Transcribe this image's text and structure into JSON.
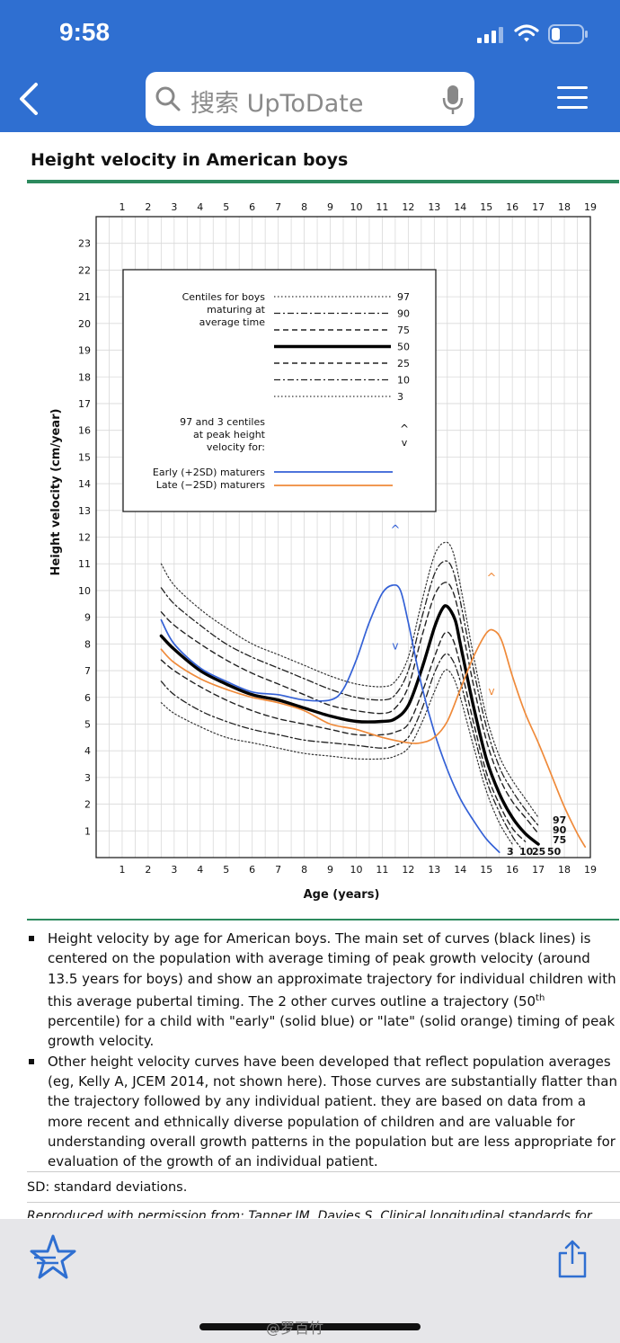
{
  "status_bar": {
    "time": "9:58"
  },
  "search": {
    "placeholder": "搜索 UpToDate"
  },
  "page": {
    "title": "Height velocity in American boys",
    "caption": [
      {
        "text": "Height velocity by age for American boys. The main set of curves (black lines) is centered on the population with average timing of peak growth velocity (around 13.5 years for boys) and show an approximate trajectory for individual children with this average pubertal timing. The 2 other curves outline a trajectory (50",
        "sup": "th",
        "tail": " percentile) for a child with \"early\" (solid blue) or \"late\" (solid orange) timing of peak growth velocity."
      },
      {
        "text": "Other height velocity curves have been developed that reflect population averages (eg, Kelly A, JCEM 2014, not shown here). Those curves are substantially flatter than the trajectory followed by any individual patient. they are based on data from a more recent and ethnically diverse population of children and are valuable for understanding overall growth patterns in the population but are less appropriate for evaluation of the growth of an individual patient."
      }
    ],
    "sd_note": "SD: standard deviations.",
    "reproduced": "Reproduced with permission from: Tanner JM, Davies S. Clinical longitudinal standards for"
  },
  "watermark": "@罗百竹",
  "colors": {
    "brand": "#2f6fd1",
    "accent_green": "#2d8a5e",
    "early": "#3461d6",
    "late": "#ef8a3a"
  },
  "chart_data": {
    "type": "line",
    "xlabel": "Age (years)",
    "ylabel": "Height velocity (cm/year)",
    "x_ticks": [
      1,
      2,
      3,
      4,
      5,
      6,
      7,
      8,
      9,
      10,
      11,
      12,
      13,
      14,
      15,
      16,
      17,
      18,
      19
    ],
    "y_ticks": [
      1,
      2,
      3,
      4,
      5,
      6,
      7,
      8,
      9,
      10,
      11,
      12,
      13,
      14,
      15,
      16,
      17,
      18,
      19,
      20,
      21,
      22,
      23
    ],
    "xlim": [
      0,
      19
    ],
    "ylim": [
      0,
      24
    ],
    "grid": true,
    "legend_position": "top-left",
    "legend": {
      "main_title": [
        "Centiles for boys",
        "maturing at",
        "average time"
      ],
      "centiles": [
        {
          "label": "97",
          "style": "dotted"
        },
        {
          "label": "90",
          "style": "dashdot"
        },
        {
          "label": "75",
          "style": "dashed"
        },
        {
          "label": "50",
          "style": "solid-bold"
        },
        {
          "label": "25",
          "style": "dashed"
        },
        {
          "label": "10",
          "style": "dashdot"
        },
        {
          "label": "3",
          "style": "dotted"
        }
      ],
      "peak_title": [
        "97 and 3 centiles",
        "at peak height",
        "velocity for:"
      ],
      "peak_marks": [
        "^",
        "v"
      ],
      "early_label": "Early (+2SD) maturers",
      "late_label": "Late (−2SD) maturers"
    },
    "end_labels": {
      "right": [
        "97",
        "90",
        "75"
      ],
      "bottom": [
        "3",
        "10",
        "25",
        "50"
      ]
    },
    "series": [
      {
        "name": "97",
        "style": "dotted",
        "points": [
          [
            2.5,
            11.0
          ],
          [
            3,
            10.2
          ],
          [
            4,
            9.3
          ],
          [
            5,
            8.6
          ],
          [
            6,
            8.0
          ],
          [
            7,
            7.6
          ],
          [
            8,
            7.2
          ],
          [
            9,
            6.8
          ],
          [
            10,
            6.5
          ],
          [
            11,
            6.4
          ],
          [
            11.5,
            6.6
          ],
          [
            12,
            7.5
          ],
          [
            12.5,
            9.5
          ],
          [
            13,
            11.3
          ],
          [
            13.4,
            11.8
          ],
          [
            13.7,
            11.5
          ],
          [
            14,
            10.2
          ],
          [
            14.5,
            7.6
          ],
          [
            15,
            5.3
          ],
          [
            15.5,
            3.8
          ],
          [
            16,
            2.9
          ],
          [
            16.5,
            2.2
          ],
          [
            17,
            1.5
          ]
        ]
      },
      {
        "name": "90",
        "style": "dashdot",
        "points": [
          [
            2.5,
            10.1
          ],
          [
            3,
            9.5
          ],
          [
            4,
            8.7
          ],
          [
            5,
            8.0
          ],
          [
            6,
            7.5
          ],
          [
            7,
            7.1
          ],
          [
            8,
            6.7
          ],
          [
            9,
            6.3
          ],
          [
            10,
            6.0
          ],
          [
            11,
            5.9
          ],
          [
            11.5,
            6.1
          ],
          [
            12,
            7.0
          ],
          [
            12.5,
            8.9
          ],
          [
            13,
            10.6
          ],
          [
            13.4,
            11.1
          ],
          [
            13.7,
            10.8
          ],
          [
            14,
            9.6
          ],
          [
            14.5,
            7.1
          ],
          [
            15,
            4.9
          ],
          [
            15.5,
            3.4
          ],
          [
            16,
            2.5
          ],
          [
            16.5,
            1.8
          ],
          [
            17,
            1.2
          ]
        ]
      },
      {
        "name": "75",
        "style": "dashed",
        "points": [
          [
            2.5,
            9.2
          ],
          [
            3,
            8.7
          ],
          [
            4,
            8.0
          ],
          [
            5,
            7.4
          ],
          [
            6,
            6.9
          ],
          [
            7,
            6.5
          ],
          [
            8,
            6.1
          ],
          [
            9,
            5.7
          ],
          [
            10,
            5.5
          ],
          [
            11,
            5.4
          ],
          [
            11.5,
            5.6
          ],
          [
            12,
            6.4
          ],
          [
            12.5,
            8.2
          ],
          [
            13,
            9.8
          ],
          [
            13.4,
            10.3
          ],
          [
            13.7,
            10.0
          ],
          [
            14,
            8.9
          ],
          [
            14.5,
            6.5
          ],
          [
            15,
            4.4
          ],
          [
            15.5,
            3.0
          ],
          [
            16,
            2.1
          ],
          [
            16.5,
            1.5
          ],
          [
            17,
            0.9
          ]
        ]
      },
      {
        "name": "50",
        "style": "solid",
        "points": [
          [
            2.5,
            8.3
          ],
          [
            3,
            7.8
          ],
          [
            4,
            7.0
          ],
          [
            5,
            6.5
          ],
          [
            6,
            6.1
          ],
          [
            7,
            5.9
          ],
          [
            8,
            5.6
          ],
          [
            9,
            5.3
          ],
          [
            10,
            5.1
          ],
          [
            11,
            5.1
          ],
          [
            11.5,
            5.2
          ],
          [
            12,
            5.7
          ],
          [
            12.5,
            7.0
          ],
          [
            13,
            8.6
          ],
          [
            13.3,
            9.3
          ],
          [
            13.5,
            9.4
          ],
          [
            13.8,
            8.9
          ],
          [
            14,
            8.0
          ],
          [
            14.5,
            5.7
          ],
          [
            15,
            3.7
          ],
          [
            15.5,
            2.4
          ],
          [
            16,
            1.5
          ],
          [
            16.5,
            0.9
          ],
          [
            17,
            0.5
          ]
        ]
      },
      {
        "name": "25",
        "style": "dashed",
        "points": [
          [
            2.5,
            7.4
          ],
          [
            3,
            7.0
          ],
          [
            4,
            6.4
          ],
          [
            5,
            5.9
          ],
          [
            6,
            5.5
          ],
          [
            7,
            5.2
          ],
          [
            8,
            5.0
          ],
          [
            9,
            4.8
          ],
          [
            10,
            4.6
          ],
          [
            11,
            4.6
          ],
          [
            11.5,
            4.7
          ],
          [
            12,
            5.0
          ],
          [
            12.5,
            6.1
          ],
          [
            13,
            7.5
          ],
          [
            13.4,
            8.4
          ],
          [
            13.7,
            8.2
          ],
          [
            14,
            7.2
          ],
          [
            14.5,
            5.1
          ],
          [
            15,
            3.2
          ],
          [
            15.5,
            2.0
          ],
          [
            16,
            1.1
          ],
          [
            16.5,
            0.6
          ]
        ]
      },
      {
        "name": "10",
        "style": "dashdot",
        "points": [
          [
            2.5,
            6.6
          ],
          [
            3,
            6.1
          ],
          [
            4,
            5.5
          ],
          [
            5,
            5.1
          ],
          [
            6,
            4.8
          ],
          [
            7,
            4.6
          ],
          [
            8,
            4.4
          ],
          [
            9,
            4.3
          ],
          [
            10,
            4.2
          ],
          [
            11,
            4.1
          ],
          [
            11.5,
            4.2
          ],
          [
            12,
            4.5
          ],
          [
            12.5,
            5.5
          ],
          [
            13,
            6.9
          ],
          [
            13.4,
            7.6
          ],
          [
            13.7,
            7.4
          ],
          [
            14,
            6.6
          ],
          [
            14.5,
            4.7
          ],
          [
            15,
            2.9
          ],
          [
            15.5,
            1.7
          ],
          [
            16,
            0.8
          ],
          [
            16.3,
            0.4
          ]
        ]
      },
      {
        "name": "3",
        "style": "dotted",
        "points": [
          [
            2.5,
            5.8
          ],
          [
            3,
            5.4
          ],
          [
            4,
            4.9
          ],
          [
            5,
            4.5
          ],
          [
            6,
            4.3
          ],
          [
            7,
            4.1
          ],
          [
            8,
            3.9
          ],
          [
            9,
            3.8
          ],
          [
            10,
            3.7
          ],
          [
            11,
            3.7
          ],
          [
            11.5,
            3.8
          ],
          [
            12,
            4.1
          ],
          [
            12.5,
            5.0
          ],
          [
            13,
            6.2
          ],
          [
            13.4,
            7.0
          ],
          [
            13.7,
            6.8
          ],
          [
            14,
            6.0
          ],
          [
            14.5,
            4.2
          ],
          [
            15,
            2.5
          ],
          [
            15.5,
            1.3
          ],
          [
            16,
            0.5
          ]
        ]
      },
      {
        "name": "Early (+2SD) maturers",
        "style": "blue",
        "points": [
          [
            2.5,
            8.9
          ],
          [
            3,
            8.0
          ],
          [
            4,
            7.1
          ],
          [
            5,
            6.6
          ],
          [
            6,
            6.2
          ],
          [
            7,
            6.1
          ],
          [
            8,
            5.9
          ],
          [
            9,
            5.9
          ],
          [
            9.5,
            6.3
          ],
          [
            10,
            7.4
          ],
          [
            10.5,
            8.8
          ],
          [
            11,
            9.9
          ],
          [
            11.4,
            10.2
          ],
          [
            11.7,
            10.0
          ],
          [
            12,
            8.8
          ],
          [
            12.5,
            6.5
          ],
          [
            13,
            4.7
          ],
          [
            13.5,
            3.3
          ],
          [
            14,
            2.2
          ],
          [
            14.5,
            1.4
          ],
          [
            15,
            0.7
          ],
          [
            15.5,
            0.2
          ]
        ]
      },
      {
        "name": "Late (−2SD) maturers",
        "style": "orange",
        "points": [
          [
            2.5,
            7.8
          ],
          [
            3,
            7.3
          ],
          [
            4,
            6.7
          ],
          [
            5,
            6.3
          ],
          [
            6,
            6.0
          ],
          [
            7,
            5.8
          ],
          [
            8,
            5.5
          ],
          [
            9,
            5.0
          ],
          [
            10,
            4.8
          ],
          [
            11,
            4.5
          ],
          [
            12,
            4.3
          ],
          [
            12.5,
            4.3
          ],
          [
            13,
            4.5
          ],
          [
            13.5,
            5.1
          ],
          [
            14,
            6.3
          ],
          [
            14.5,
            7.5
          ],
          [
            15,
            8.4
          ],
          [
            15.3,
            8.5
          ],
          [
            15.6,
            8.1
          ],
          [
            16,
            6.8
          ],
          [
            16.5,
            5.4
          ],
          [
            17,
            4.3
          ],
          [
            17.5,
            3.1
          ],
          [
            18,
            1.9
          ],
          [
            18.5,
            0.9
          ],
          [
            18.8,
            0.4
          ]
        ]
      }
    ],
    "peak_markers": [
      {
        "series": "Early (+2SD) maturers",
        "upper": [
          11.5,
          12.3
        ],
        "lower": [
          11.5,
          7.9
        ]
      },
      {
        "series": "Late (−2SD) maturers",
        "upper": [
          15.2,
          10.5
        ],
        "lower": [
          15.2,
          6.2
        ]
      }
    ]
  }
}
